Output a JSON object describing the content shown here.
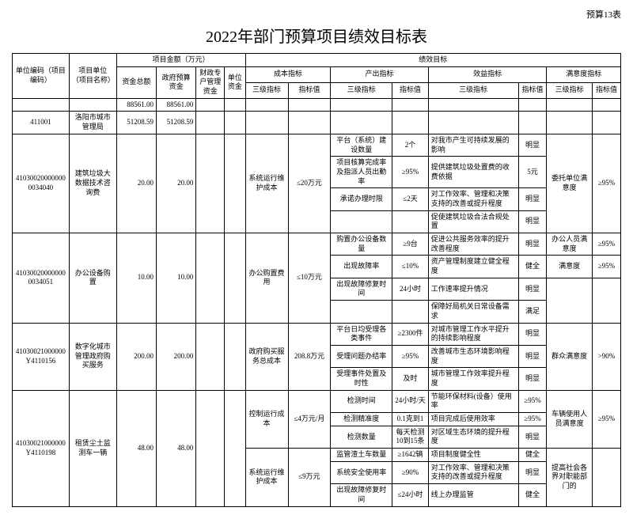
{
  "header_note": "预算13表",
  "title": "2022年部门预算项目绩效目标表",
  "cols": {
    "unit_code": "单位编码（项目编码）",
    "unit_name": "项目单位（项目名称）",
    "amount_group": "项目金额（万元）",
    "amount_total": "资金总额",
    "amount_gov": "政府预算资金",
    "amount_sp": "财政专户管理资金",
    "amount_unit": "单位资金",
    "perf_group": "绩效目标",
    "cost": "成本指标",
    "output": "产出指标",
    "benefit": "效益指标",
    "satisfy": "满意度指标",
    "lv3": "三级指标",
    "val": "指标值"
  },
  "row_total": {
    "amt1": "88561.00",
    "amt2": "88561.00"
  },
  "row_org": {
    "code": "411001",
    "name": "洛阳市城市管理局",
    "amt1": "51208.59",
    "amt2": "51208.59"
  },
  "p1": {
    "code": "410300200000000034040",
    "name": "建筑垃圾大数据技术咨询费",
    "amt1": "20.00",
    "amt2": "20.00",
    "r1": {
      "cost_l3": "系统运行维护成本",
      "cost_v": "≤20万元",
      "out_l3": "平台（系统）建设数量",
      "out_v": "2个",
      "ben_l3": "对我市产生可持续发展的影响",
      "ben_v": "明显",
      "sat_l3": "委托单位满意度",
      "sat_v": "≥95%"
    },
    "r2": {
      "out_l3": "项目核算完成率及指派人员出勤率",
      "out_v": "≥95%",
      "ben_l3": "提供建筑垃圾处置费的收费依据",
      "ben_v": "5元"
    },
    "r3": {
      "out_l3": "承诺办理时限",
      "out_v": "≤2天",
      "ben_l3": "对工作效率、管理和决策支持的改善或提升程度",
      "ben_v": "明显"
    },
    "r4": {
      "ben_l3": "促使建筑垃圾合法合规处置",
      "ben_v": "明显"
    }
  },
  "p2": {
    "code": "410300200000000034051",
    "name": "办公设备购置",
    "amt1": "10.00",
    "amt2": "10.00",
    "r1": {
      "cost_l3": "办公购置费用",
      "cost_v": "≤10万元",
      "out_l3": "购置办公设备数量",
      "out_v": "≥9台",
      "ben_l3": "促进公共服务效率的提升改善程度",
      "ben_v": "明显",
      "sat_l3": "办公人员满意度",
      "sat_v": "≥95%"
    },
    "r2": {
      "out_l3": "出现故障率",
      "out_v": "≤10%",
      "ben_l3": "资产管理制度建立健全程度",
      "ben_v": "健全",
      "sat_l3": "满意度",
      "sat_v": "≥95%"
    },
    "r3": {
      "out_l3": "出现故障修复时间",
      "out_v": "24小时",
      "ben_l3": "工作速率提升情况",
      "ben_v": "明显"
    },
    "r4": {
      "ben_l3": "保障好局机关日常设备需求",
      "ben_v": "满足"
    }
  },
  "p3": {
    "code": "41030021000000Y4110156",
    "name": "数字化城市管理政府购买服务",
    "amt1": "200.00",
    "amt2": "200.00",
    "r1": {
      "cost_l3": "政府购买服务总成本",
      "cost_v": "208.8万元",
      "out_l3": "平台日均受理各类事件",
      "out_v": "≥2300件",
      "ben_l3": "对城市管理工作水平提升的持续影响程度",
      "ben_v": "明显",
      "sat_l3": "群众满意度",
      "sat_v": ">90%"
    },
    "r2": {
      "out_l3": "受理问题办结率",
      "out_v": "≥95%",
      "ben_l3": "改善城市生态环境影响程度",
      "ben_v": "明显"
    },
    "r3": {
      "out_l3": "受理事件处置及时性",
      "out_v": "及时",
      "ben_l3": "城市管理工作效率提升程度",
      "ben_v": "明显"
    }
  },
  "p4": {
    "code": "41030021000000Y4110198",
    "name": "租赁尘土监测车一辆",
    "amt1": "48.00",
    "amt2": "48.00",
    "r1": {
      "cost_l3": "控制运行成本",
      "cost_v": "≤4万元/月",
      "out_l3": "检测时间",
      "out_v": "24小时/天",
      "ben_l3": "节能环保材料(设备）使用率",
      "ben_v": "≥95%",
      "sat_l3": "车辆使用人员满意度",
      "sat_v": "≥95%"
    },
    "r2": {
      "out_l3": "检测精准度",
      "out_v": "0.1克到1",
      "ben_l3": "项目完成后使用效率",
      "ben_v": "≥95%"
    },
    "r3": {
      "out_l3": "检测数量",
      "out_v": "每天检测10到15条",
      "ben_l3": "对区域生态环境的提升程度",
      "ben_v": "明显"
    },
    "r4": {
      "cost_l3": "系统运行维护成本",
      "cost_v": "≤9万元",
      "out_l3": "监管渣土车数量",
      "out_v": "≥1642辆",
      "ben_l3": "项目制度健全性",
      "ben_v": "健全",
      "sat_l3": "提高社会各界对职能部门的"
    },
    "r5": {
      "out_l3": "系统安全使用率",
      "out_v": "≥90%",
      "ben_l3": "对工作效率、管理和决策支持的改善或提升程度",
      "ben_v": "明显"
    },
    "r6": {
      "out_l3": "出现故障修复时间",
      "out_v": "≤24小时",
      "ben_l3": "线上办理监管",
      "ben_v": "健全"
    }
  }
}
